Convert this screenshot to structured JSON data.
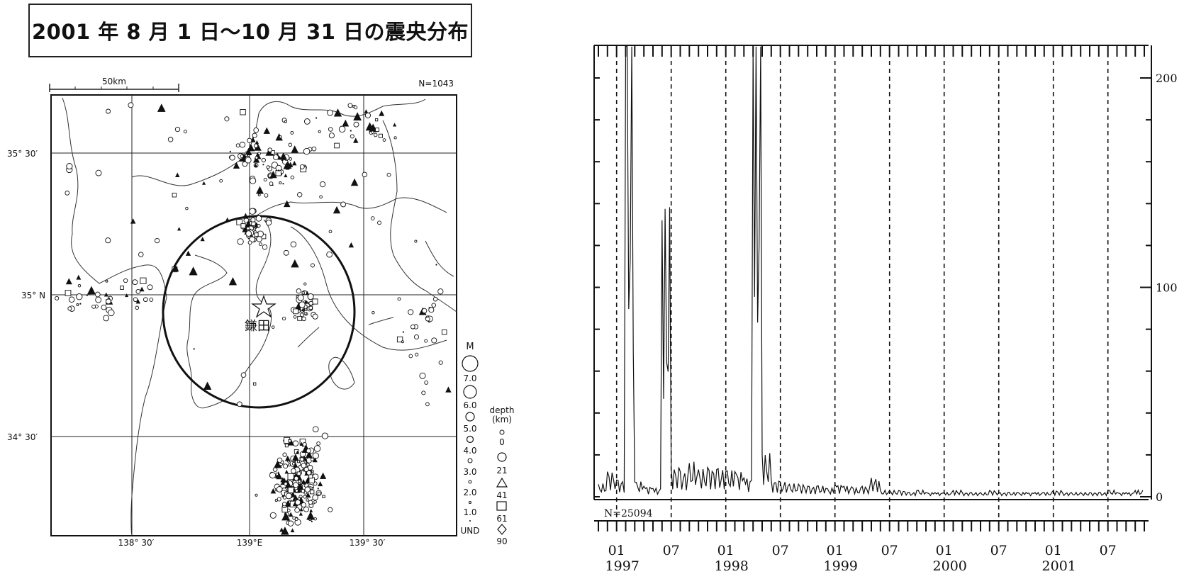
{
  "map": {
    "title": "2001 年 8 月 1 日～10 月 31 日の震央分布",
    "scale_label": "50km",
    "count_label": "N=1043",
    "lat_labels": [
      "35° 30′",
      "35° N",
      "34° 30′"
    ],
    "lon_labels": [
      "138° 30′",
      "139°E",
      "139° 30′"
    ],
    "center_label": "鎌田",
    "legend": {
      "magnitude_title": "M",
      "magnitudes": [
        "7.0",
        "6.0",
        "5.0",
        "4.0",
        "3.0",
        "2.0",
        "1.0",
        "UND"
      ],
      "depth_title": "depth",
      "depth_unit": "(km)",
      "depths": [
        "0",
        "21",
        "41",
        "61",
        "90"
      ]
    }
  },
  "chart_data": {
    "type": "line",
    "title": "",
    "count_label": "N=25094",
    "ylim": [
      0,
      200
    ],
    "yticks_labeled": [
      "0",
      "100",
      "200"
    ],
    "x_tick_labels": [
      "01",
      "07",
      "01",
      "07",
      "01",
      "07",
      "01",
      "07",
      "01",
      "07"
    ],
    "x_year_labels": [
      "1997",
      "1998",
      "1999",
      "2000",
      "2001"
    ],
    "x_range": [
      "1996-11",
      "2001-10"
    ],
    "series": [
      {
        "x": [
          "1996-11",
          "1996-12",
          "1997-01",
          "1997-02",
          "1997-03",
          "1997-04",
          "1997-05",
          "1997-06",
          "1997-07",
          "1997-08",
          "1997-09",
          "1997-10",
          "1997-11",
          "1997-12",
          "1998-01",
          "1998-02",
          "1998-03",
          "1998-04",
          "1998-05",
          "1998-06",
          "1998-07",
          "1998-08",
          "1998-09",
          "1998-10",
          "1998-11",
          "1998-12",
          "1999-01",
          "1999-02",
          "1999-03",
          "1999-04",
          "1999-05",
          "1999-06",
          "1999-07",
          "1999-08",
          "1999-09",
          "1999-10",
          "1999-11",
          "1999-12",
          "2000-01",
          "2000-02",
          "2000-03",
          "2000-04",
          "2000-05",
          "2000-06",
          "2000-07",
          "2000-08",
          "2000-09",
          "2000-10",
          "2000-11",
          "2000-12",
          "2001-01",
          "2001-02",
          "2001-03",
          "2001-04",
          "2001-05",
          "2001-06",
          "2001-07",
          "2001-08",
          "2001-09",
          "2001-10"
        ],
        "values": [
          6,
          12,
          8,
          215,
          7,
          5,
          4,
          132,
          14,
          12,
          16,
          13,
          14,
          13,
          12,
          12,
          9,
          215,
          20,
          8,
          7,
          6,
          6,
          5,
          5,
          4,
          6,
          5,
          4,
          5,
          9,
          3,
          3,
          3,
          2,
          3,
          2,
          2,
          2,
          3,
          2,
          2,
          2,
          3,
          2,
          2,
          2,
          2,
          2,
          2,
          3,
          2,
          2,
          2,
          2,
          2,
          3,
          2,
          2,
          3
        ]
      }
    ],
    "dashed_gridlines": true
  }
}
